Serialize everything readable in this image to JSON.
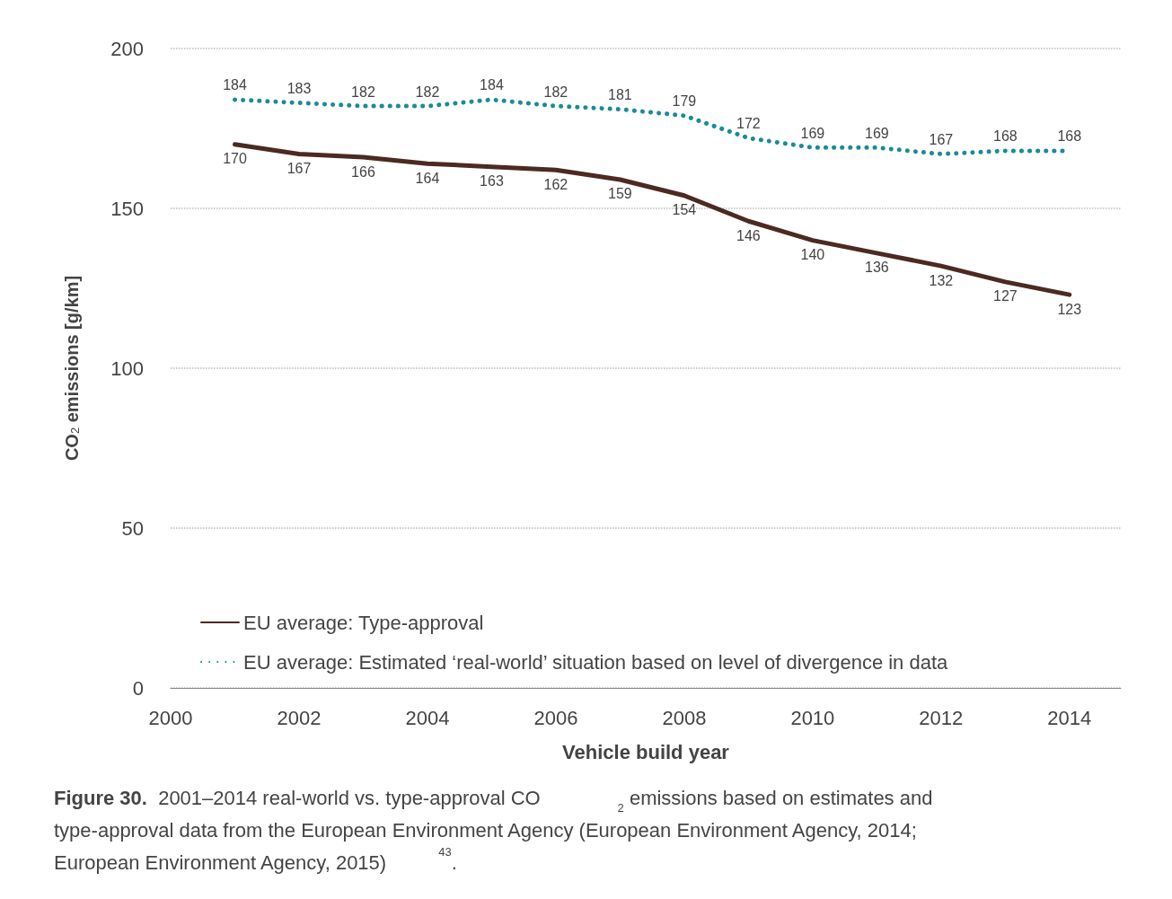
{
  "chart_data": {
    "type": "line",
    "xlabel": "Vehicle build year",
    "ylabel": "CO$_{2}$ emissions [g/km]",
    "x": [
      2001,
      2002,
      2003,
      2004,
      2005,
      2006,
      2007,
      2008,
      2009,
      2010,
      2011,
      2012,
      2013,
      2014
    ],
    "series": [
      {
        "name": "EU average: Type-approval",
        "color": "#4b2a22",
        "line_style": "solid",
        "values": [
          170,
          167,
          166,
          164,
          163,
          162,
          159,
          154,
          146,
          140,
          136,
          132,
          127,
          123
        ]
      },
      {
        "name": "EU average: Estimated ‘real-world’ situation based on level of divergence in data",
        "color": "#1b8b98",
        "line_style": "dotted",
        "values": [
          184,
          183,
          182,
          182,
          184,
          182,
          181,
          179,
          172,
          169,
          169,
          167,
          168,
          168
        ]
      }
    ],
    "xlim": [
      2000,
      2014.8
    ],
    "xticks": [
      2000,
      2002,
      2004,
      2006,
      2008,
      2010,
      2012,
      2014
    ],
    "ylim": [
      0,
      200
    ],
    "yticks": [
      0,
      50,
      100,
      150,
      200
    ],
    "grid": "y",
    "legend": "bottom left",
    "marker": "none",
    "data_labels": true,
    "annotations": [
      "Figure 30.",
      "2001–2014 real-world vs. type-approval CO$_{2}$ emissions based on estimates and type-approval data from the European Environment Agency (European Environment Agency, 2014; European Environment Agency, 2015) $^{43}$."
    ]
  }
}
